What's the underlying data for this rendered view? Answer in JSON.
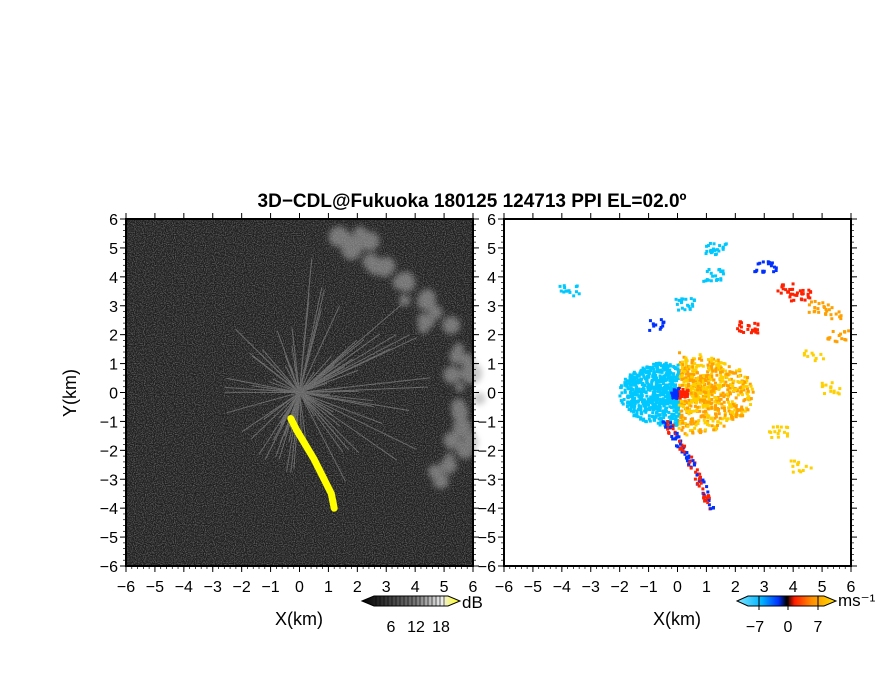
{
  "title": "3D−CDL@Fukuoka 180125 124713 PPI EL=02.0º",
  "chart_data": [
    {
      "type": "heatmap",
      "name": "reflectivity",
      "title": "",
      "xlabel": "X(km)",
      "ylabel": "Y(km)",
      "xlim": [
        -6,
        6
      ],
      "ylim": [
        -6,
        6
      ],
      "x_ticks": [
        "−6",
        "−5",
        "−4",
        "−3",
        "−2",
        "−1",
        "0",
        "1",
        "2",
        "3",
        "4",
        "5",
        "6"
      ],
      "y_ticks": [
        "6",
        "5",
        "4",
        "3",
        "2",
        "1",
        "0",
        "−1",
        "−2",
        "−3",
        "−4",
        "−5",
        "−6"
      ],
      "colorbar": {
        "unit": "dB",
        "ticks": [
          "6",
          "12",
          "18"
        ],
        "range": [
          0,
          24
        ]
      },
      "features": [
        {
          "kind": "echo-streak",
          "color": "#ffff00",
          "path_km": [
            [
              -0.3,
              -0.9
            ],
            [
              -0.1,
              -1.3
            ],
            [
              0.2,
              -1.8
            ],
            [
              0.5,
              -2.3
            ],
            [
              0.8,
              -2.9
            ],
            [
              1.1,
              -3.5
            ],
            [
              1.2,
              -4.0
            ]
          ]
        },
        {
          "kind": "clutter-arc",
          "color": "#bbbbbb",
          "path_km": [
            [
              1,
              5.8
            ],
            [
              2,
              5.1
            ],
            [
              3,
              4.3
            ],
            [
              4,
              3.4
            ],
            [
              5,
              2.2
            ],
            [
              5.6,
              1.0
            ],
            [
              5.9,
              -0.5
            ],
            [
              5.5,
              -1.8
            ],
            [
              4.8,
              -2.8
            ]
          ]
        }
      ]
    },
    {
      "type": "heatmap",
      "name": "doppler-velocity",
      "title": "",
      "xlabel": "X(km)",
      "ylabel": "",
      "xlim": [
        -6,
        6
      ],
      "ylim": [
        -6,
        6
      ],
      "x_ticks": [
        "−6",
        "−5",
        "−4",
        "−3",
        "−2",
        "−1",
        "0",
        "1",
        "2",
        "3",
        "4",
        "5",
        "6"
      ],
      "y_ticks": [
        "6",
        "5",
        "4",
        "3",
        "2",
        "1",
        "0",
        "−1",
        "−2",
        "−3",
        "−4",
        "−5",
        "−6"
      ],
      "colorbar": {
        "unit": "ms⁻¹",
        "ticks": [
          "−7",
          "0",
          "7"
        ],
        "range": [
          -10,
          10
        ]
      },
      "colors": {
        "approaching": "#00c8ff",
        "strong_negative": "#0030ff",
        "strong_positive": "#ff2000",
        "receding": "#ffa000"
      }
    }
  ]
}
